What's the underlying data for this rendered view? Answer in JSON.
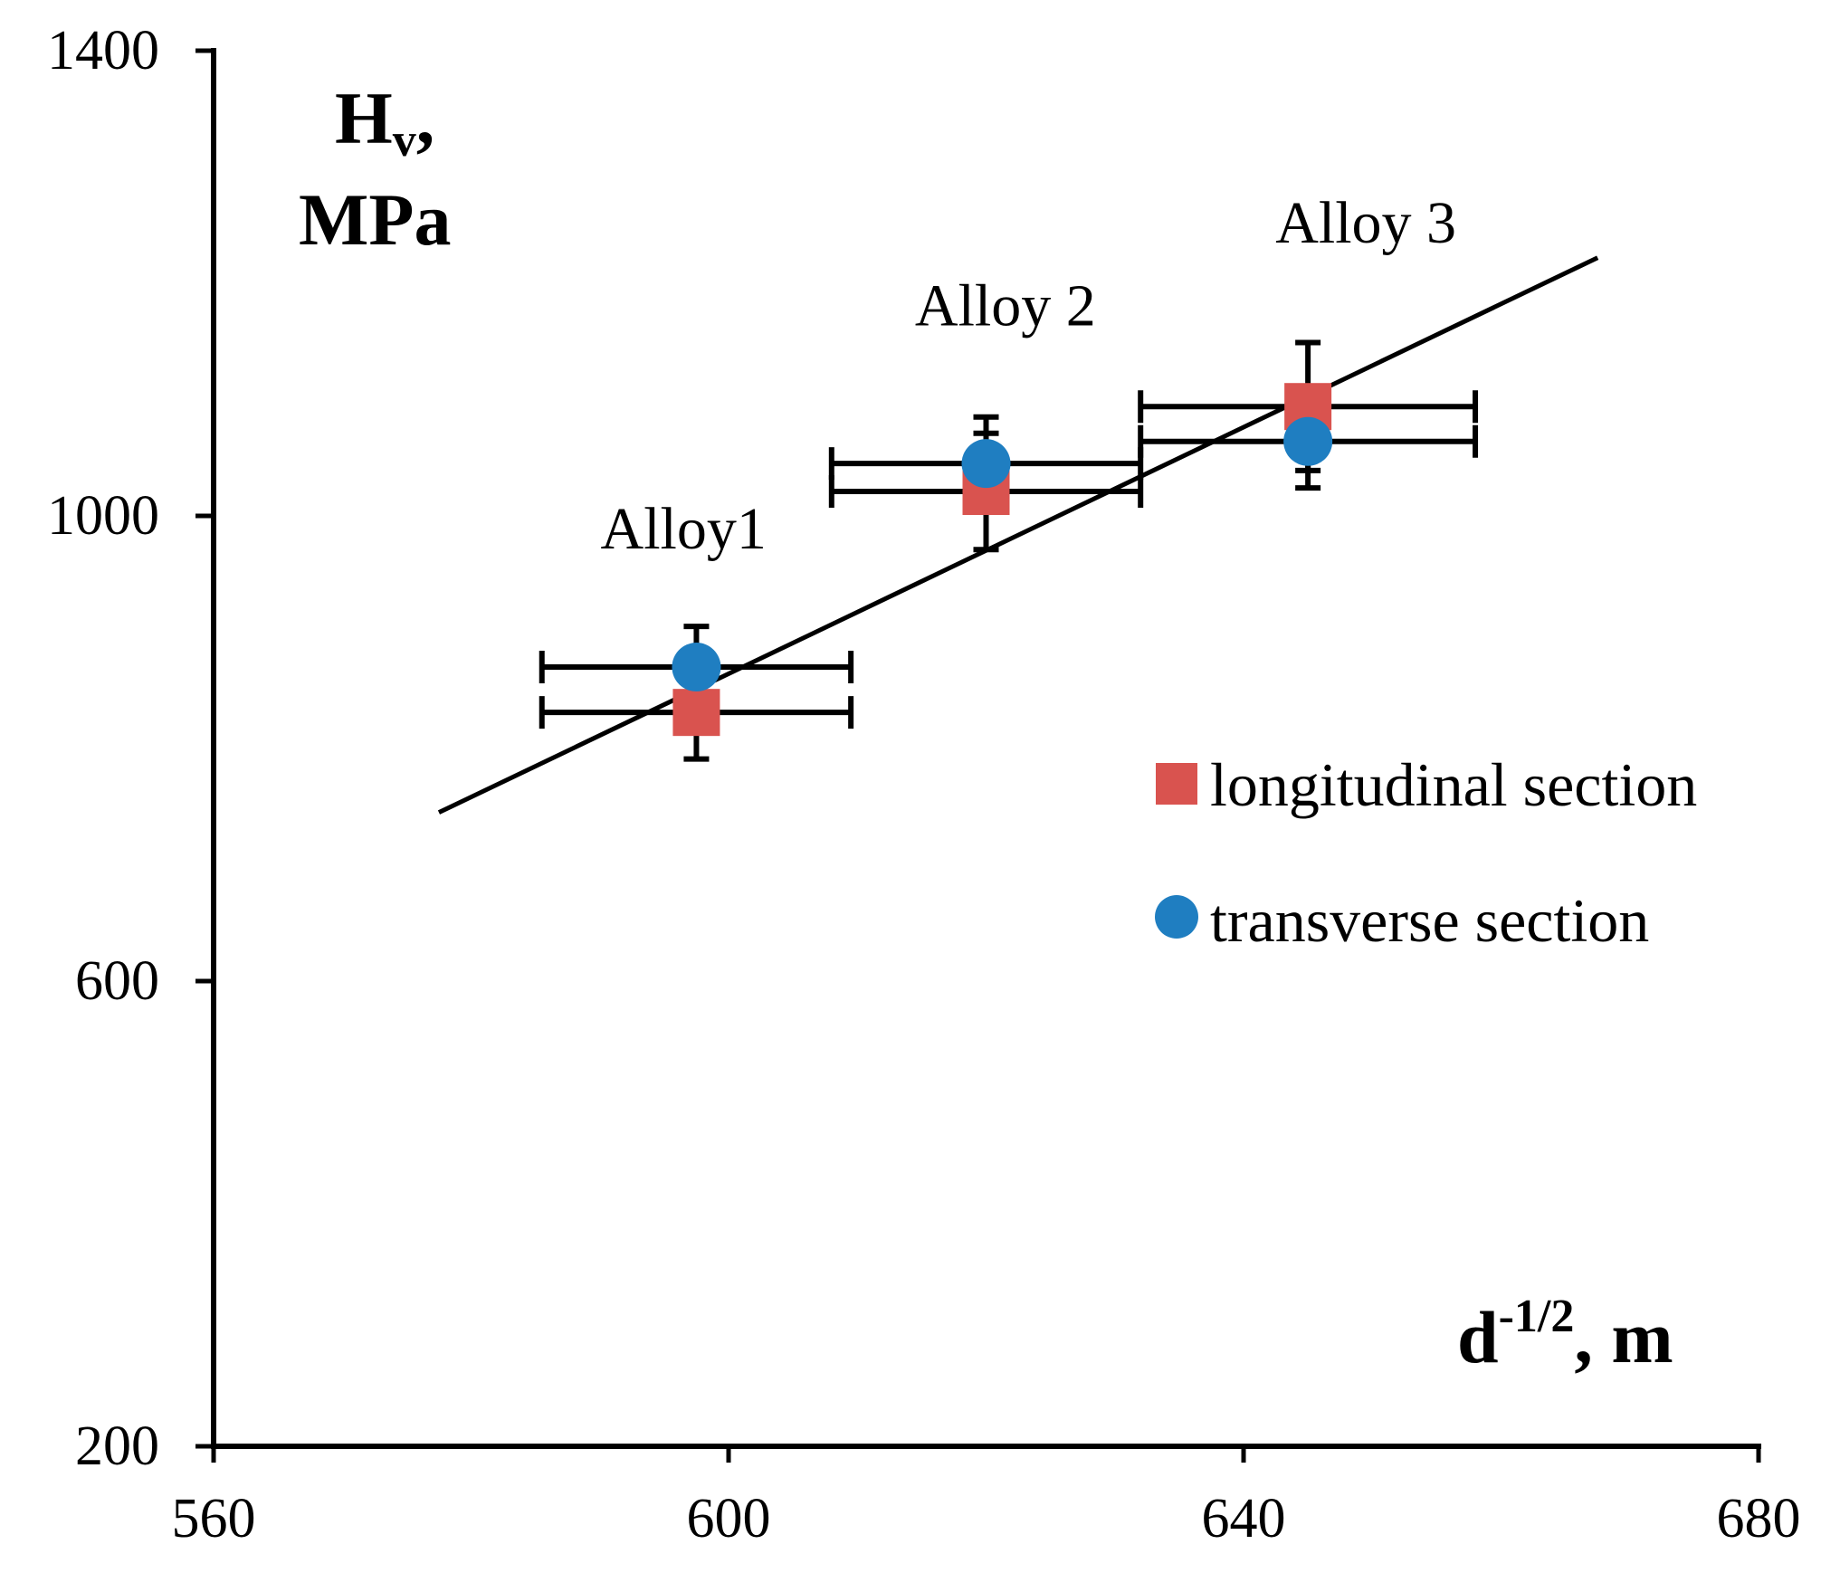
{
  "chart_data": {
    "type": "scatter",
    "title": "",
    "xlabel": {
      "base": "d",
      "sup": "-1/2",
      "suffix": ", m"
    },
    "ylabel": {
      "line1_base": "H",
      "line1_sub": "v",
      "line1_suffix": ",",
      "line2": "MPa"
    },
    "xlim": [
      560,
      680
    ],
    "ylim": [
      200,
      1400
    ],
    "xticks": [
      560,
      600,
      640,
      680
    ],
    "yticks": [
      200,
      600,
      1000,
      1400
    ],
    "grid": false,
    "legend_position": "right-middle",
    "series": [
      {
        "name": "longitudinal section",
        "marker": "square",
        "color": "#d9534f",
        "points": [
          {
            "x": 597.5,
            "y": 831,
            "xerr": 12,
            "yerr": 40
          },
          {
            "x": 620,
            "y": 1021,
            "xerr": 12,
            "yerr": 50
          },
          {
            "x": 645,
            "y": 1094,
            "xerr": 13,
            "yerr": 55
          }
        ]
      },
      {
        "name": "transverse section",
        "marker": "circle",
        "color": "#1f7ec1",
        "points": [
          {
            "x": 597.5,
            "y": 870,
            "xerr": 12,
            "yerr": 35
          },
          {
            "x": 620,
            "y": 1045,
            "xerr": 12,
            "yerr": 40
          },
          {
            "x": 645,
            "y": 1064,
            "xerr": 13,
            "yerr": 40
          }
        ]
      }
    ],
    "trendline": {
      "x": [
        577.5,
        667.5
      ],
      "y": [
        745,
        1222
      ],
      "color": "#000000"
    },
    "annotations": [
      {
        "text": "Alloy1",
        "x": 596.5,
        "y": 972
      },
      {
        "text": "Alloy 2",
        "x": 621.5,
        "y": 1164
      },
      {
        "text": "Alloy 3",
        "x": 649.5,
        "y": 1235
      }
    ]
  }
}
